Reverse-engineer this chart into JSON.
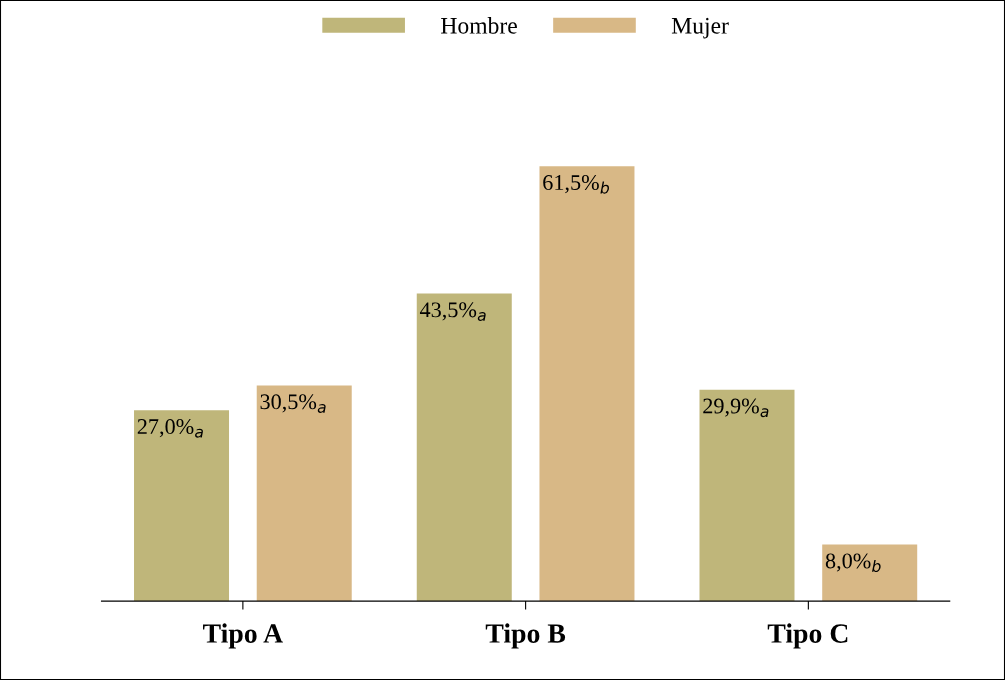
{
  "chart_data": {
    "type": "bar",
    "categories": [
      "Tipo A",
      "Tipo B",
      "Tipo C"
    ],
    "series": [
      {
        "name": "Hombre",
        "color": "#bfb67a",
        "values": [
          27.0,
          43.5,
          29.9
        ],
        "value_labels": [
          "27,0%$_{a}$",
          "43,5%$_{a}$",
          "29,9%$_{a}$"
        ]
      },
      {
        "name": "Mujer",
        "color": "#d8b886",
        "values": [
          30.5,
          61.5,
          8.0
        ],
        "value_labels": [
          "30,5%$_{a}$",
          "61,5%$_{b}$",
          "8,0%$_{b}$"
        ]
      }
    ],
    "legend": "top",
    "grid": false
  }
}
